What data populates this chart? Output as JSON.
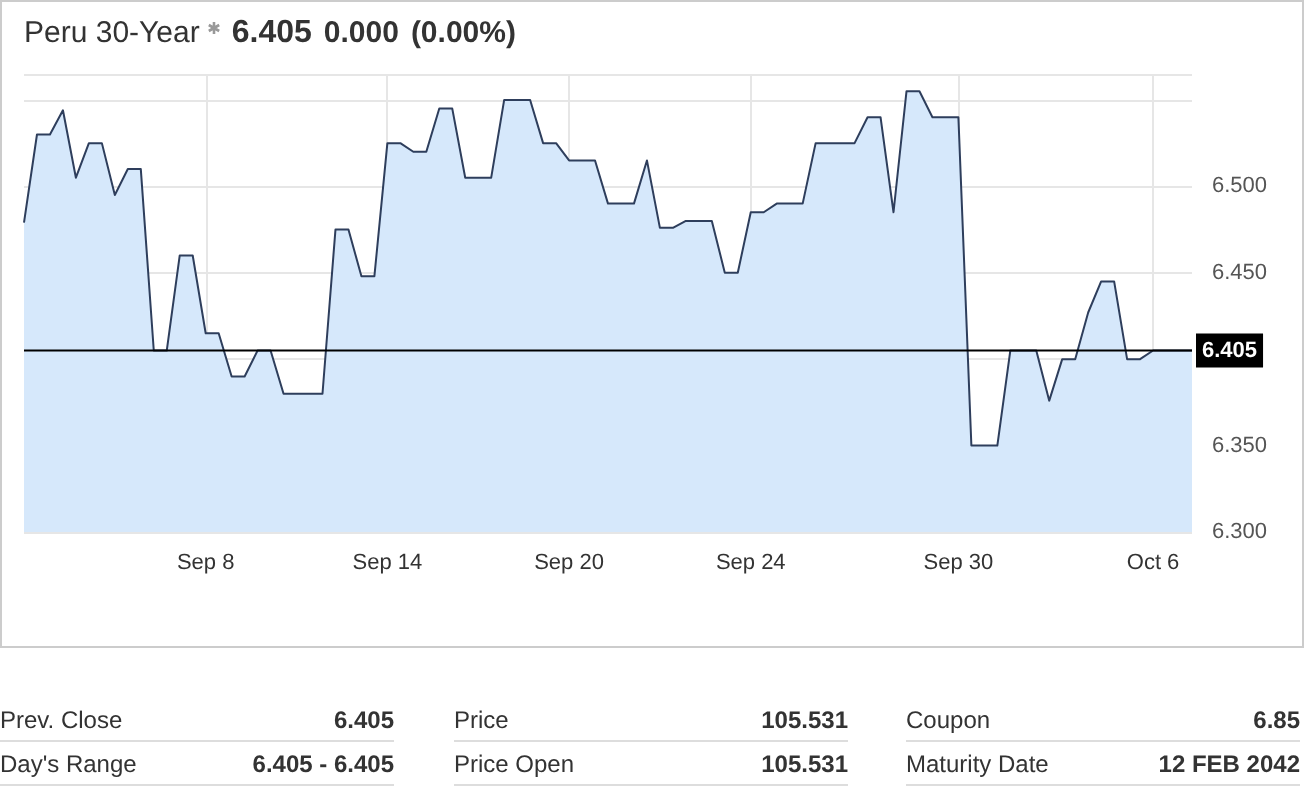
{
  "chart_data": {
    "type": "area",
    "title": "Peru 30-Year",
    "annotations": [
      "6.405",
      "0.000",
      "(0.00%)",
      "Prev. Close",
      "6.405",
      "Price",
      "105.531",
      "Coupon",
      "6.85",
      "Day's Range",
      "6.405 - 6.405",
      "Price Open",
      "105.531",
      "Maturity Date",
      "12 FEB 2042"
    ],
    "categories": [
      null,
      null,
      null,
      null,
      null,
      null,
      null,
      null,
      null,
      null,
      null,
      null,
      null,
      null,
      "Sep 8",
      null,
      null,
      null,
      null,
      null,
      null,
      null,
      null,
      null,
      null,
      null,
      null,
      null,
      "Sep 14",
      null,
      null,
      null,
      null,
      null,
      null,
      null,
      null,
      null,
      null,
      null,
      null,
      null,
      "Sep 20",
      null,
      null,
      null,
      null,
      null,
      null,
      null,
      null,
      null,
      null,
      null,
      null,
      null,
      "Sep 24",
      null,
      null,
      null,
      null,
      null,
      null,
      null,
      null,
      null,
      null,
      null,
      null,
      null,
      null,
      null,
      "Sep 30",
      null,
      null,
      null,
      null,
      null,
      null,
      null,
      null,
      null,
      null,
      null,
      null,
      null,
      null,
      "Oct 6",
      null,
      null,
      null
    ],
    "series": [
      {
        "color": "#2e3e5c",
        "values": [
          6.479,
          6.53,
          6.53,
          6.544,
          6.505,
          6.525,
          6.525,
          6.495,
          6.51,
          6.51,
          6.405,
          6.405,
          6.46,
          6.46,
          6.415,
          6.415,
          6.39,
          6.39,
          6.405,
          6.405,
          6.38,
          6.38,
          6.38,
          6.38,
          6.475,
          6.475,
          6.448,
          6.448,
          6.525,
          6.525,
          6.52,
          6.52,
          6.545,
          6.545,
          6.505,
          6.505,
          6.505,
          6.55,
          6.55,
          6.55,
          6.525,
          6.525,
          6.515,
          6.515,
          6.515,
          6.49,
          6.49,
          6.49,
          6.515,
          6.476,
          6.476,
          6.48,
          6.48,
          6.48,
          6.45,
          6.45,
          6.485,
          6.485,
          6.49,
          6.49,
          6.49,
          6.525,
          6.525,
          6.525,
          6.525,
          6.54,
          6.54,
          6.485,
          6.555,
          6.555,
          6.54,
          6.54,
          6.54,
          6.35,
          6.35,
          6.35,
          6.405,
          6.405,
          6.405,
          6.376,
          6.4,
          6.4,
          6.427,
          6.445,
          6.445,
          6.4,
          6.4,
          6.405,
          6.405,
          6.405,
          6.405
        ]
      }
    ],
    "ylim": [
      6.3,
      6.565
    ],
    "yticks": [
      {
        "value": 6.3,
        "label": "6.300"
      },
      {
        "value": 6.35,
        "label": "6.350"
      },
      {
        "value": 6.4,
        "label": null
      },
      {
        "value": 6.45,
        "label": "6.450"
      },
      {
        "value": 6.5,
        "label": "6.500"
      },
      {
        "value": 6.55,
        "label": null
      }
    ],
    "ref_lines": [
      {
        "axis": "y",
        "value": 6.405,
        "label": "6.405",
        "color": "#000000"
      }
    ],
    "grid": true,
    "marker": "none",
    "line_style": "solid"
  }
}
